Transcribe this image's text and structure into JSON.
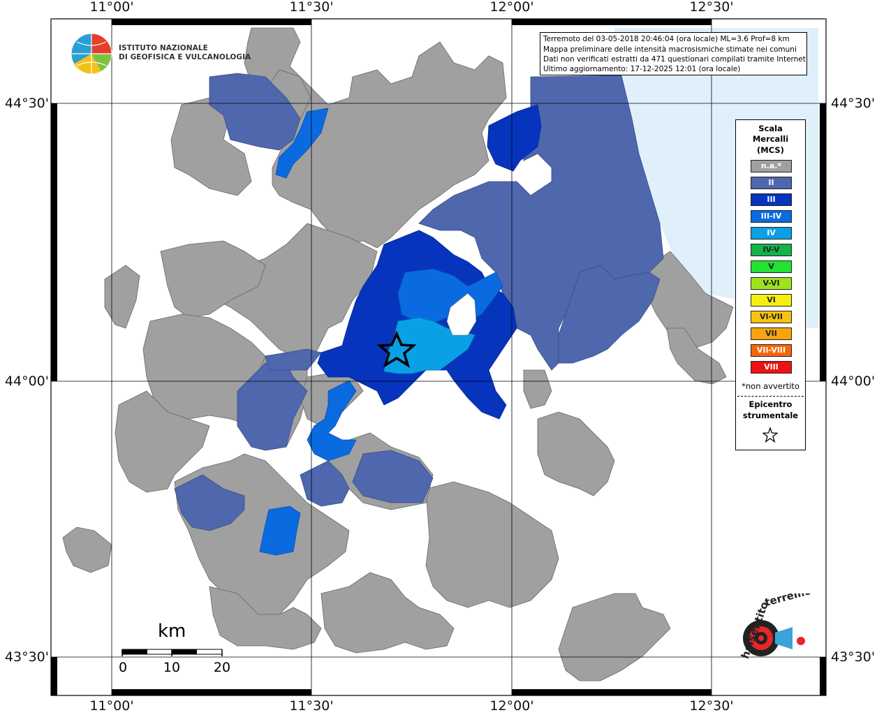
{
  "coords": {
    "top": [
      "11°00'",
      "11°30'",
      "12°00'",
      "12°30'"
    ],
    "bottom": [
      "11°00'",
      "11°30'",
      "12°00'",
      "12°30'"
    ],
    "left": [
      "44°30'",
      "44°00'",
      "43°30'"
    ],
    "right": [
      "44°30'",
      "44°00'",
      "43°30'"
    ]
  },
  "info": {
    "line1": "Terremoto del 03-05-2018 20:46:04 (ora locale) ML=3.6 Prof=8 km",
    "line2": "Mappa preliminare delle intensità macrosismiche stimate nei comuni",
    "line3": "Dati non verificati estratti da 471 questionari compilati tramite Internet.",
    "line4": "Ultimo aggiornamento: 17-12-2025 12:01 (ora locale)"
  },
  "institute": {
    "line1": "ISTITUTO NAZIONALE",
    "line2": "DI GEOFISICA E VULCANOLOGIA"
  },
  "legend": {
    "title1": "Scala",
    "title2": "Mercalli",
    "title3": "(MCS)",
    "items": [
      {
        "label": "n.a.*",
        "color": "#a0a0a0"
      },
      {
        "label": "II",
        "color": "#4f67ad"
      },
      {
        "label": "III",
        "color": "#0734bd"
      },
      {
        "label": "III-IV",
        "color": "#0a6be0"
      },
      {
        "label": "IV",
        "color": "#0aa0e6"
      },
      {
        "label": "IV-V",
        "color": "#13b34a"
      },
      {
        "label": "V",
        "color": "#22e234"
      },
      {
        "label": "V-VI",
        "color": "#9ee41e"
      },
      {
        "label": "VI",
        "color": "#f6ee10"
      },
      {
        "label": "VI-VII",
        "color": "#f6c40d"
      },
      {
        "label": "VII",
        "color": "#f6a50d"
      },
      {
        "label": "VII-VIII",
        "color": "#f5660a"
      },
      {
        "label": "VIII",
        "color": "#ef1111"
      }
    ],
    "na_note": "*non avvertito",
    "epi1": "Epicentro",
    "epi2": "strumentale"
  },
  "scale": {
    "unit": "km",
    "labels": [
      "0",
      "10",
      "20"
    ]
  },
  "colors": {
    "sea": "#dff0fb",
    "na": "#a0a0a0",
    "II": "#4f67ad",
    "III": "#0734bd",
    "III-IV": "#0a6be0",
    "IV": "#0aa0e6"
  },
  "brand": "haisentitoilterremoto.it"
}
